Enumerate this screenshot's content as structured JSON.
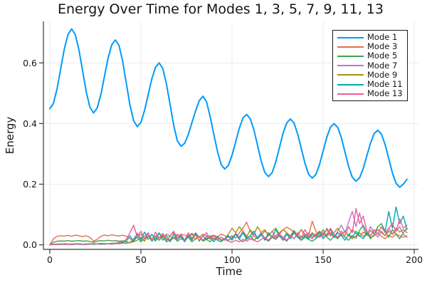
{
  "chart_data": {
    "type": "line",
    "title": "Energy Over Time for Modes 1, 3, 5, 7, 9, 11, 13",
    "xlabel": "Time",
    "ylabel": "Energy",
    "xlim": [
      -3.5,
      202.3
    ],
    "ylim": [
      -0.015,
      0.737
    ],
    "xticks": [
      0,
      50,
      100,
      150,
      200
    ],
    "xticklabels": [
      "0",
      "50",
      "100",
      "150",
      "200"
    ],
    "yticks": [
      0.0,
      0.2,
      0.4,
      0.6
    ],
    "yticklabels": [
      "0.0",
      "0.2",
      "0.4",
      "0.6"
    ],
    "grid": true,
    "legend_position": "top-right",
    "x_start": 0,
    "x_step": 2,
    "axis_color": "#383838",
    "grid_color": "#ECECEC",
    "text_color": "#151515",
    "series": [
      {
        "name": "Mode 1",
        "color": "#009AFA",
        "linewidth": 2,
        "values": [
          0.449,
          0.467,
          0.515,
          0.581,
          0.646,
          0.694,
          0.712,
          0.693,
          0.643,
          0.574,
          0.504,
          0.454,
          0.435,
          0.451,
          0.495,
          0.556,
          0.616,
          0.66,
          0.676,
          0.657,
          0.605,
          0.533,
          0.461,
          0.409,
          0.39,
          0.404,
          0.443,
          0.495,
          0.548,
          0.586,
          0.6,
          0.582,
          0.531,
          0.463,
          0.394,
          0.343,
          0.325,
          0.335,
          0.364,
          0.403,
          0.441,
          0.475,
          0.49,
          0.472,
          0.423,
          0.365,
          0.308,
          0.265,
          0.25,
          0.262,
          0.295,
          0.34,
          0.385,
          0.418,
          0.43,
          0.416,
          0.379,
          0.328,
          0.276,
          0.239,
          0.225,
          0.238,
          0.273,
          0.32,
          0.368,
          0.402,
          0.415,
          0.402,
          0.366,
          0.318,
          0.269,
          0.233,
          0.22,
          0.232,
          0.265,
          0.31,
          0.355,
          0.388,
          0.4,
          0.387,
          0.353,
          0.305,
          0.258,
          0.223,
          0.21,
          0.221,
          0.252,
          0.294,
          0.336,
          0.367,
          0.378,
          0.365,
          0.331,
          0.284,
          0.237,
          0.203,
          0.19,
          0.2,
          0.216
        ]
      },
      {
        "name": "Mode 3",
        "color": "#E36F47",
        "linewidth": 1.4,
        "values": [
          0.0,
          0.02,
          0.028,
          0.03,
          0.029,
          0.031,
          0.028,
          0.032,
          0.03,
          0.027,
          0.03,
          0.025,
          0.012,
          0.018,
          0.028,
          0.032,
          0.03,
          0.033,
          0.031,
          0.029,
          0.032,
          0.028,
          0.02,
          0.014,
          0.025,
          0.035,
          0.022,
          0.03,
          0.018,
          0.028,
          0.038,
          0.025,
          0.035,
          0.03,
          0.04,
          0.028,
          0.035,
          0.032,
          0.028,
          0.038,
          0.03,
          0.025,
          0.035,
          0.03,
          0.028,
          0.032,
          0.026,
          0.035,
          0.03,
          0.025,
          0.03,
          0.022,
          0.04,
          0.055,
          0.075,
          0.045,
          0.028,
          0.02,
          0.032,
          0.045,
          0.035,
          0.025,
          0.03,
          0.04,
          0.05,
          0.058,
          0.052,
          0.04,
          0.03,
          0.022,
          0.035,
          0.03,
          0.078,
          0.045,
          0.025,
          0.035,
          0.028,
          0.04,
          0.03,
          0.022,
          0.035,
          0.045,
          0.03,
          0.02,
          0.03,
          0.04,
          0.028,
          0.035,
          0.025,
          0.03,
          0.038,
          0.028,
          0.02,
          0.032,
          0.025,
          0.035,
          0.03,
          0.025,
          0.03
        ]
      },
      {
        "name": "Mode 5",
        "color": "#3EA44E",
        "linewidth": 1.4,
        "values": [
          0.0,
          0.008,
          0.012,
          0.013,
          0.012,
          0.014,
          0.012,
          0.013,
          0.014,
          0.012,
          0.013,
          0.011,
          0.008,
          0.012,
          0.014,
          0.013,
          0.015,
          0.013,
          0.014,
          0.012,
          0.013,
          0.01,
          0.006,
          0.015,
          0.025,
          0.01,
          0.02,
          0.03,
          0.012,
          0.022,
          0.015,
          0.028,
          0.01,
          0.018,
          0.025,
          0.012,
          0.02,
          0.015,
          0.025,
          0.01,
          0.02,
          0.028,
          0.012,
          0.018,
          0.01,
          0.022,
          0.015,
          0.01,
          0.02,
          0.015,
          0.025,
          0.035,
          0.018,
          0.01,
          0.022,
          0.03,
          0.015,
          0.025,
          0.04,
          0.02,
          0.012,
          0.025,
          0.018,
          0.03,
          0.022,
          0.012,
          0.028,
          0.048,
          0.03,
          0.015,
          0.025,
          0.018,
          0.012,
          0.02,
          0.03,
          0.05,
          0.025,
          0.015,
          0.028,
          0.02,
          0.035,
          0.025,
          0.015,
          0.03,
          0.022,
          0.048,
          0.065,
          0.04,
          0.02,
          0.035,
          0.06,
          0.07,
          0.045,
          0.025,
          0.05,
          0.035,
          0.02,
          0.04,
          0.055
        ]
      },
      {
        "name": "Mode 7",
        "color": "#C371D2",
        "linewidth": 1.4,
        "values": [
          0.0,
          0.002,
          0.003,
          0.002,
          0.004,
          0.003,
          0.002,
          0.004,
          0.003,
          0.002,
          0.003,
          0.004,
          0.002,
          0.003,
          0.005,
          0.003,
          0.004,
          0.002,
          0.005,
          0.004,
          0.006,
          0.005,
          0.008,
          0.02,
          0.035,
          0.015,
          0.028,
          0.04,
          0.018,
          0.03,
          0.022,
          0.038,
          0.015,
          0.028,
          0.02,
          0.035,
          0.025,
          0.015,
          0.03,
          0.02,
          0.04,
          0.025,
          0.015,
          0.028,
          0.02,
          0.032,
          0.018,
          0.025,
          0.015,
          0.03,
          0.02,
          0.038,
          0.025,
          0.045,
          0.03,
          0.018,
          0.035,
          0.025,
          0.04,
          0.02,
          0.03,
          0.045,
          0.025,
          0.035,
          0.02,
          0.04,
          0.03,
          0.02,
          0.035,
          0.05,
          0.03,
          0.04,
          0.025,
          0.035,
          0.045,
          0.028,
          0.055,
          0.035,
          0.025,
          0.045,
          0.065,
          0.04,
          0.075,
          0.11,
          0.06,
          0.105,
          0.055,
          0.03,
          0.06,
          0.04,
          0.025,
          0.045,
          0.03,
          0.055,
          0.035,
          0.045,
          0.06,
          0.035,
          0.025
        ]
      },
      {
        "name": "Mode 9",
        "color": "#AC8E17",
        "linewidth": 1.4,
        "values": [
          0.0,
          0.001,
          0.002,
          0.001,
          0.003,
          0.002,
          0.001,
          0.002,
          0.003,
          0.002,
          0.001,
          0.003,
          0.002,
          0.004,
          0.003,
          0.002,
          0.004,
          0.003,
          0.005,
          0.004,
          0.006,
          0.005,
          0.008,
          0.01,
          0.015,
          0.025,
          0.012,
          0.03,
          0.018,
          0.028,
          0.015,
          0.032,
          0.02,
          0.012,
          0.025,
          0.018,
          0.03,
          0.015,
          0.025,
          0.035,
          0.018,
          0.028,
          0.015,
          0.022,
          0.03,
          0.018,
          0.025,
          0.015,
          0.02,
          0.035,
          0.055,
          0.04,
          0.06,
          0.045,
          0.025,
          0.05,
          0.035,
          0.06,
          0.04,
          0.05,
          0.03,
          0.045,
          0.055,
          0.035,
          0.05,
          0.04,
          0.025,
          0.045,
          0.03,
          0.05,
          0.035,
          0.025,
          0.04,
          0.03,
          0.045,
          0.035,
          0.05,
          0.03,
          0.04,
          0.055,
          0.035,
          0.045,
          0.03,
          0.05,
          0.038,
          0.028,
          0.042,
          0.032,
          0.048,
          0.035,
          0.05,
          0.04,
          0.03,
          0.045,
          0.035,
          0.055,
          0.042,
          0.05,
          0.04
        ]
      },
      {
        "name": "Mode 11",
        "color": "#00AAAE",
        "linewidth": 1.4,
        "values": [
          0.0,
          0.001,
          0.001,
          0.002,
          0.001,
          0.002,
          0.001,
          0.002,
          0.002,
          0.001,
          0.002,
          0.003,
          0.002,
          0.003,
          0.002,
          0.004,
          0.003,
          0.005,
          0.004,
          0.006,
          0.008,
          0.012,
          0.03,
          0.01,
          0.038,
          0.015,
          0.042,
          0.018,
          0.035,
          0.012,
          0.04,
          0.015,
          0.03,
          0.01,
          0.035,
          0.018,
          0.028,
          0.01,
          0.032,
          0.015,
          0.038,
          0.012,
          0.03,
          0.018,
          0.025,
          0.01,
          0.028,
          0.015,
          0.02,
          0.03,
          0.015,
          0.035,
          0.02,
          0.04,
          0.018,
          0.03,
          0.045,
          0.02,
          0.035,
          0.015,
          0.04,
          0.025,
          0.05,
          0.03,
          0.015,
          0.035,
          0.02,
          0.04,
          0.025,
          0.015,
          0.03,
          0.02,
          0.035,
          0.025,
          0.04,
          0.02,
          0.035,
          0.05,
          0.025,
          0.04,
          0.03,
          0.015,
          0.035,
          0.025,
          0.045,
          0.03,
          0.02,
          0.04,
          0.03,
          0.05,
          0.035,
          0.06,
          0.045,
          0.11,
          0.055,
          0.125,
          0.07,
          0.095,
          0.05
        ]
      },
      {
        "name": "Mode 13",
        "color": "#ED5E93",
        "linewidth": 1.4,
        "values": [
          0.0,
          0.002,
          0.001,
          0.003,
          0.002,
          0.001,
          0.003,
          0.002,
          0.004,
          0.002,
          0.003,
          0.002,
          0.004,
          0.003,
          0.005,
          0.004,
          0.003,
          0.005,
          0.006,
          0.008,
          0.01,
          0.018,
          0.04,
          0.065,
          0.025,
          0.045,
          0.02,
          0.038,
          0.015,
          0.042,
          0.022,
          0.035,
          0.015,
          0.03,
          0.045,
          0.02,
          0.035,
          0.015,
          0.04,
          0.022,
          0.032,
          0.015,
          0.028,
          0.04,
          0.018,
          0.03,
          0.015,
          0.025,
          0.018,
          0.012,
          0.008,
          0.015,
          0.01,
          0.018,
          0.012,
          0.02,
          0.015,
          0.01,
          0.018,
          0.025,
          0.015,
          0.03,
          0.02,
          0.035,
          0.025,
          0.015,
          0.03,
          0.02,
          0.04,
          0.025,
          0.05,
          0.03,
          0.02,
          0.035,
          0.025,
          0.04,
          0.03,
          0.055,
          0.035,
          0.025,
          0.045,
          0.03,
          0.06,
          0.04,
          0.12,
          0.07,
          0.095,
          0.045,
          0.03,
          0.05,
          0.035,
          0.06,
          0.04,
          0.055,
          0.07,
          0.045,
          0.085,
          0.055,
          0.065
        ]
      }
    ]
  }
}
